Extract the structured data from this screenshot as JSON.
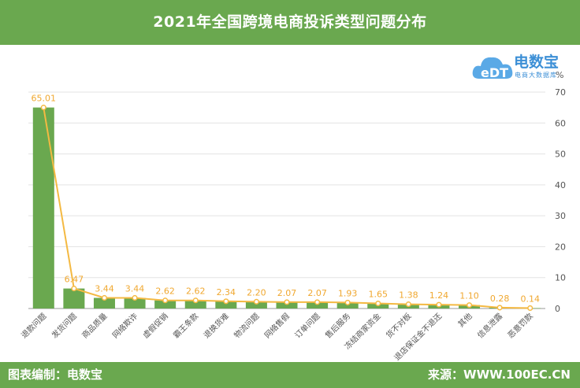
{
  "header": {
    "title": "2021年全国跨境电商投诉类型问题分布"
  },
  "footer": {
    "left": "图表编制：电数宝",
    "right": "来源：WWW.100EC.CN"
  },
  "logo": {
    "text": "电数宝",
    "sub": "电商大数据库"
  },
  "colors": {
    "bar": "#6aa84f",
    "line": "#f4b942",
    "label": "#f0a830"
  },
  "chart_data": {
    "type": "bar",
    "unit_label": "%",
    "categories": [
      "退款问题",
      "发货问题",
      "商品质量",
      "网络欺诈",
      "虚假促销",
      "霸王条款",
      "退换货难",
      "物流问题",
      "网络售假",
      "订单问题",
      "售后服务",
      "冻结商家资金",
      "货不对板",
      "退店保证金不退还",
      "其他",
      "信息泄露",
      "恶意罚款"
    ],
    "series": [
      {
        "type": "bar",
        "values": [
          65.01,
          6.47,
          3.44,
          3.44,
          2.62,
          2.62,
          2.34,
          2.2,
          2.07,
          2.07,
          1.93,
          1.65,
          1.38,
          1.24,
          1.1,
          0.28,
          0.14
        ]
      },
      {
        "type": "line",
        "values": [
          65.01,
          6.47,
          3.44,
          3.44,
          2.62,
          2.62,
          2.34,
          2.2,
          2.07,
          2.07,
          1.93,
          1.65,
          1.38,
          1.24,
          1.1,
          0.28,
          0.14
        ]
      }
    ],
    "data_labels": [
      "65.01",
      "6.47",
      "3.44",
      "3.44",
      "2.62",
      "2.62",
      "2.34",
      "2.20",
      "2.07",
      "2.07",
      "1.93",
      "1.65",
      "1.38",
      "1.24",
      "1.10",
      "0.28",
      "0.14"
    ],
    "y_axis": {
      "position": "right",
      "ylim": [
        0,
        70
      ],
      "ticks": [
        0,
        10,
        20,
        30,
        40,
        50,
        60,
        70
      ]
    },
    "grid": true
  }
}
